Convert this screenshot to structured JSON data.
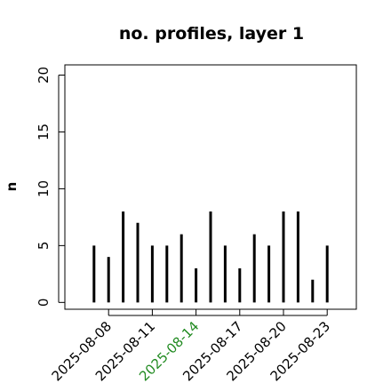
{
  "chart_data": {
    "type": "stem",
    "title": "no. profiles, layer 1",
    "y_label": "n",
    "x": [
      "2025-08-07",
      "2025-08-08",
      "2025-08-09",
      "2025-08-10",
      "2025-08-11",
      "2025-08-12",
      "2025-08-13",
      "2025-08-14",
      "2025-08-15",
      "2025-08-16",
      "2025-08-17",
      "2025-08-18",
      "2025-08-19",
      "2025-08-20",
      "2025-08-21",
      "2025-08-22",
      "2025-08-23"
    ],
    "values": [
      5,
      4,
      8,
      7,
      5,
      5,
      6,
      3,
      8,
      5,
      3,
      6,
      5,
      8,
      8,
      2,
      5
    ],
    "color": "#000000",
    "xlim": [
      "2025-08-05",
      "2025-08-25"
    ],
    "xticks": [
      "2025-08-08",
      "2025-08-11",
      "2025-08-14",
      "2025-08-17",
      "2025-08-20",
      "2025-08-23"
    ],
    "xtick_label_colors": [
      "#000000",
      "#000000",
      "#228b22",
      "#000000",
      "#000000",
      "#000000"
    ],
    "ylim": [
      -0.6,
      20.9
    ],
    "yticks": [
      0,
      5,
      10,
      15,
      20
    ]
  }
}
